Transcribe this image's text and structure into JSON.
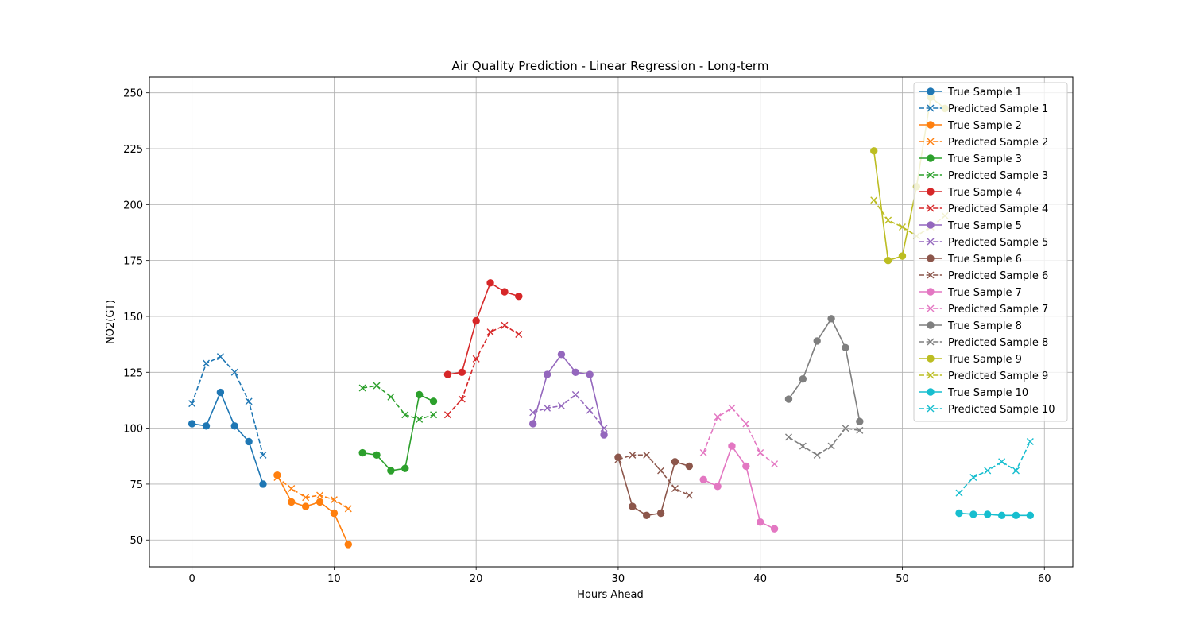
{
  "chart_data": {
    "type": "line",
    "title": "Air Quality Prediction - Linear Regression  - Long-term",
    "xlabel": "Hours Ahead",
    "ylabel": "NO2(GT)",
    "xlim": [
      -3,
      62
    ],
    "ylim": [
      38,
      257
    ],
    "xticks": [
      0,
      10,
      20,
      30,
      40,
      50,
      60
    ],
    "yticks": [
      50,
      75,
      100,
      125,
      150,
      175,
      200,
      225,
      250
    ],
    "grid": true,
    "legend_position": "top-right",
    "series": [
      {
        "name": "True Sample 1",
        "color": "#1f77b4",
        "style": "solid",
        "marker": "circle",
        "x": [
          0,
          1,
          2,
          3,
          4,
          5
        ],
        "values": [
          102,
          101,
          116,
          101,
          94,
          75
        ]
      },
      {
        "name": "Predicted Sample 1",
        "color": "#1f77b4",
        "style": "dashed",
        "marker": "x",
        "x": [
          0,
          1,
          2,
          3,
          4,
          5
        ],
        "values": [
          111,
          129,
          132,
          125,
          112,
          88
        ]
      },
      {
        "name": "True Sample 2",
        "color": "#ff7f0e",
        "style": "solid",
        "marker": "circle",
        "x": [
          6,
          7,
          8,
          9,
          10,
          11
        ],
        "values": [
          79,
          67,
          65,
          67,
          62,
          48
        ]
      },
      {
        "name": "Predicted Sample 2",
        "color": "#ff7f0e",
        "style": "dashed",
        "marker": "x",
        "x": [
          6,
          7,
          8,
          9,
          10,
          11
        ],
        "values": [
          78,
          73,
          69,
          70,
          68,
          64
        ]
      },
      {
        "name": "True Sample 3",
        "color": "#2ca02c",
        "style": "solid",
        "marker": "circle",
        "x": [
          12,
          13,
          14,
          15,
          16,
          17
        ],
        "values": [
          89,
          88,
          81,
          82,
          115,
          112
        ]
      },
      {
        "name": "Predicted Sample 3",
        "color": "#2ca02c",
        "style": "dashed",
        "marker": "x",
        "x": [
          12,
          13,
          14,
          15,
          16,
          17
        ],
        "values": [
          118,
          119,
          114,
          106,
          104,
          106
        ]
      },
      {
        "name": "True Sample 4",
        "color": "#d62728",
        "style": "solid",
        "marker": "circle",
        "x": [
          18,
          19,
          20,
          21,
          22,
          23
        ],
        "values": [
          124,
          125,
          148,
          165,
          161,
          159
        ]
      },
      {
        "name": "Predicted Sample 4",
        "color": "#d62728",
        "style": "dashed",
        "marker": "x",
        "x": [
          18,
          19,
          20,
          21,
          22,
          23
        ],
        "values": [
          106,
          113,
          131,
          143,
          146,
          142
        ]
      },
      {
        "name": "True Sample 5",
        "color": "#9467bd",
        "style": "solid",
        "marker": "circle",
        "x": [
          24,
          25,
          26,
          27,
          28,
          29
        ],
        "values": [
          102,
          124,
          133,
          125,
          124,
          97
        ]
      },
      {
        "name": "Predicted Sample 5",
        "color": "#9467bd",
        "style": "dashed",
        "marker": "x",
        "x": [
          24,
          25,
          26,
          27,
          28,
          29
        ],
        "values": [
          107,
          109,
          110,
          115,
          108,
          100
        ]
      },
      {
        "name": "True Sample 6",
        "color": "#8c564b",
        "style": "solid",
        "marker": "circle",
        "x": [
          30,
          31,
          32,
          33,
          34,
          35
        ],
        "values": [
          87,
          65,
          61,
          62,
          85,
          83
        ]
      },
      {
        "name": "Predicted Sample 6",
        "color": "#8c564b",
        "style": "dashed",
        "marker": "x",
        "x": [
          30,
          31,
          32,
          33,
          34,
          35
        ],
        "values": [
          86,
          88,
          88,
          81,
          73,
          70
        ]
      },
      {
        "name": "True Sample 7",
        "color": "#e377c2",
        "style": "solid",
        "marker": "circle",
        "x": [
          36,
          37,
          38,
          39,
          40,
          41
        ],
        "values": [
          77,
          74,
          92,
          83,
          58,
          55
        ]
      },
      {
        "name": "Predicted Sample 7",
        "color": "#e377c2",
        "style": "dashed",
        "marker": "x",
        "x": [
          36,
          37,
          38,
          39,
          40,
          41
        ],
        "values": [
          89,
          105,
          109,
          102,
          89,
          84
        ]
      },
      {
        "name": "True Sample 8",
        "color": "#7f7f7f",
        "style": "solid",
        "marker": "circle",
        "x": [
          42,
          43,
          44,
          45,
          46,
          47
        ],
        "values": [
          113,
          122,
          139,
          149,
          136,
          103
        ]
      },
      {
        "name": "Predicted Sample 8",
        "color": "#7f7f7f",
        "style": "dashed",
        "marker": "x",
        "x": [
          42,
          43,
          44,
          45,
          46,
          47
        ],
        "values": [
          96,
          92,
          88,
          92,
          100,
          99
        ]
      },
      {
        "name": "True Sample 9",
        "color": "#bcbd22",
        "style": "solid",
        "marker": "circle",
        "x": [
          48,
          49,
          50,
          51,
          52,
          53
        ],
        "values": [
          224,
          175,
          177,
          208,
          248,
          243
        ]
      },
      {
        "name": "Predicted Sample 9",
        "color": "#bcbd22",
        "style": "dashed",
        "marker": "x",
        "x": [
          48,
          49,
          50,
          51,
          52,
          53
        ],
        "values": [
          202,
          193,
          190,
          186,
          190,
          195
        ]
      },
      {
        "name": "True Sample 10",
        "color": "#17becf",
        "style": "solid",
        "marker": "circle",
        "x": [
          54,
          55,
          56,
          57,
          58,
          59
        ],
        "values": [
          62,
          61.5,
          61.5,
          61,
          61,
          61
        ]
      },
      {
        "name": "Predicted Sample 10",
        "color": "#17becf",
        "style": "dashed",
        "marker": "x",
        "x": [
          54,
          55,
          56,
          57,
          58,
          59
        ],
        "values": [
          71,
          78,
          81,
          85,
          81,
          94
        ]
      }
    ]
  }
}
